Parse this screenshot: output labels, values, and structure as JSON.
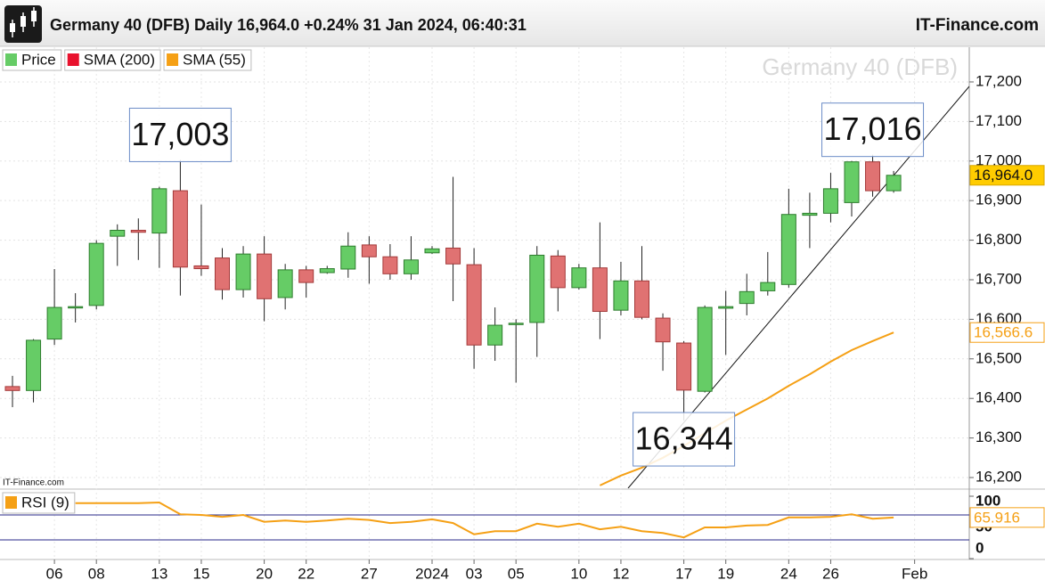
{
  "chart_data": [
    {
      "type": "candlestick",
      "title": "Germany 40 (DFB) Daily 16,964.0 +0.24% 31 Jan 2024, 06:40:31",
      "source": "IT-Finance.com",
      "watermark": "Germany 40 (DFB)",
      "chart_credit": "IT-Finance.com",
      "categories": [
        null,
        null,
        "06",
        null,
        "08",
        null,
        null,
        "13",
        null,
        "15",
        null,
        null,
        "20",
        null,
        "22",
        null,
        null,
        "27",
        null,
        null,
        "2024",
        null,
        "03",
        null,
        "05",
        null,
        null,
        "10",
        null,
        "12",
        null,
        null,
        "17",
        null,
        "19",
        null,
        null,
        "24",
        null,
        "26",
        null,
        null,
        null,
        "Feb"
      ],
      "series": [
        {
          "name": "Price",
          "color": "#66cc66",
          "up_color": "#66cc66",
          "down_color": "#e07272",
          "open": [
            16430,
            16420,
            16550,
            16630,
            16635,
            16810,
            16825,
            16818,
            16925,
            16735,
            16755,
            16675,
            16765,
            16655,
            16725,
            16718,
            16727,
            16788,
            16758,
            16715,
            16768,
            16780,
            16738,
            16535,
            16588,
            16592,
            16760,
            16680,
            16730,
            16623,
            16697,
            16603,
            16540,
            16418,
            16628,
            16640,
            16672,
            16688,
            16863,
            16868,
            16895,
            16998,
            16925,
            null
          ],
          "high": [
            16457,
            16550,
            16727,
            16666,
            16800,
            16840,
            16855,
            16935,
            17003,
            16890,
            16780,
            16785,
            16810,
            16740,
            16735,
            16735,
            16820,
            16810,
            16790,
            16810,
            16785,
            16960,
            16780,
            16630,
            16600,
            16785,
            16775,
            16740,
            16845,
            16745,
            16785,
            16615,
            16545,
            16635,
            16672,
            16715,
            16770,
            16930,
            16920,
            16970,
            17000,
            17016,
            16975,
            null
          ],
          "low": [
            16378,
            16390,
            16535,
            16592,
            16625,
            16735,
            16750,
            16730,
            16660,
            16710,
            16650,
            16655,
            16595,
            16625,
            16655,
            16715,
            16705,
            16690,
            16700,
            16700,
            16765,
            16646,
            16475,
            16495,
            16440,
            16505,
            16620,
            16675,
            16550,
            16610,
            16600,
            16470,
            16344,
            16415,
            16510,
            16610,
            16660,
            16680,
            16780,
            16845,
            16860,
            16910,
            16920,
            null
          ],
          "close": [
            16420,
            16547,
            16630,
            16632,
            16792,
            16825,
            16820,
            16930,
            16732,
            16728,
            16675,
            16765,
            16652,
            16725,
            16693,
            16728,
            16785,
            16758,
            16715,
            16750,
            16778,
            16740,
            16535,
            16585,
            16590,
            16762,
            16680,
            16730,
            16620,
            16697,
            16605,
            16543,
            16421,
            16630,
            16632,
            16670,
            16693,
            16865,
            16868,
            16930,
            16998,
            16925,
            16964,
            null
          ],
          "last_label": {
            "value": 16964,
            "label": "16,964.0"
          }
        },
        {
          "name": "SMA (200)",
          "color": "#e8112d"
        },
        {
          "name": "SMA (55)",
          "color": "#f5a015",
          "values": [
            null,
            null,
            null,
            null,
            null,
            null,
            null,
            null,
            null,
            null,
            null,
            null,
            null,
            null,
            null,
            null,
            null,
            null,
            null,
            null,
            null,
            null,
            null,
            null,
            null,
            null,
            null,
            null,
            16180,
            16205,
            16225,
            16250,
            16280,
            16312,
            16344,
            16372,
            16400,
            16432,
            16461,
            16493,
            16522,
            16545,
            16566.6,
            null
          ],
          "last_label": {
            "value": 16566.6,
            "label": "16,566.6"
          }
        }
      ],
      "annotations": [
        {
          "value": 17003,
          "label": "17,003"
        },
        {
          "value": 17016,
          "label": "17,016"
        },
        {
          "value": 16344,
          "label": "16,344"
        }
      ],
      "ylim": [
        16173,
        17290
      ],
      "yticks": [
        {
          "value": 16200,
          "label": "16,200"
        },
        {
          "value": 16300,
          "label": "16,300"
        },
        {
          "value": 16400,
          "label": "16,400"
        },
        {
          "value": 16500,
          "label": "16,500"
        },
        {
          "value": 16600,
          "label": "16,600"
        },
        {
          "value": 16700,
          "label": "16,700"
        },
        {
          "value": 16800,
          "label": "16,800"
        },
        {
          "value": 16900,
          "label": "16,900"
        },
        {
          "value": 17000,
          "label": "17,000"
        },
        {
          "value": 17100,
          "label": "17,100"
        },
        {
          "value": 17200,
          "label": "17,200"
        }
      ],
      "grid": true
    },
    {
      "type": "line",
      "series": [
        {
          "name": "RSI (9)",
          "color": "#f5a015",
          "values": [
            null,
            null,
            null,
            89,
            89,
            89,
            89,
            90,
            71,
            70,
            67,
            70,
            59,
            61,
            59,
            61,
            64,
            62,
            57,
            59,
            63,
            57,
            39,
            44,
            44,
            56,
            51,
            56,
            47,
            51,
            44,
            41,
            34,
            50,
            50,
            53,
            54,
            66,
            66,
            67,
            71,
            64,
            65.916,
            null
          ],
          "last_label": {
            "value": 65.916,
            "label": "65.916"
          }
        }
      ],
      "levels": [
        30,
        70
      ],
      "level_color": "#2a2a8a",
      "ylim": [
        0,
        100
      ],
      "yticks": [
        0,
        50,
        100
      ]
    }
  ]
}
